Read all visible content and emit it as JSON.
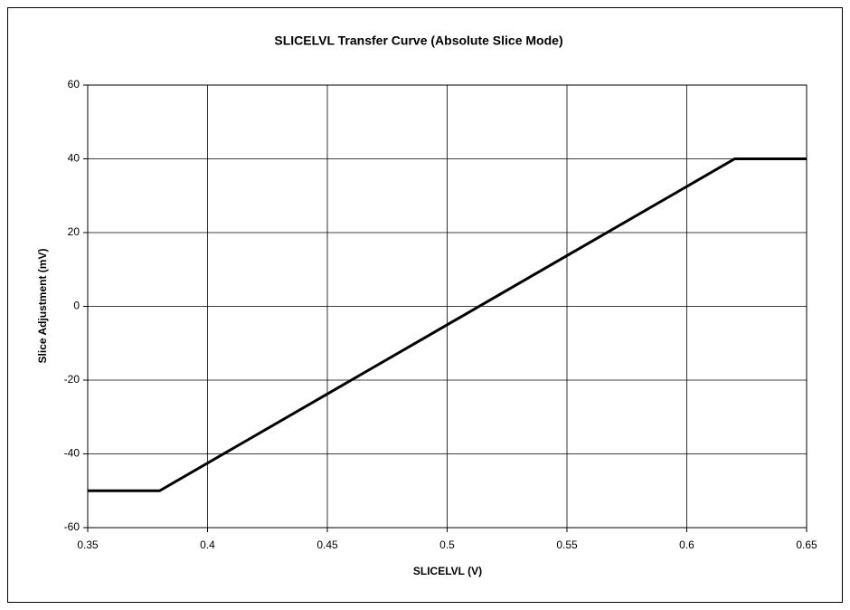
{
  "chart_data": {
    "type": "line",
    "title": "SLICELVL Transfer Curve (Absolute Slice Mode)",
    "xlabel": "SLICELVL (V)",
    "ylabel": "Slice Adjustment (mV)",
    "x": [
      0.35,
      0.38,
      0.62,
      0.65
    ],
    "values": [
      -50,
      -50,
      40,
      40
    ],
    "color": "#000000",
    "xlim": [
      0.35,
      0.65
    ],
    "xticks": [
      0.35,
      0.4,
      0.45,
      0.5,
      0.55,
      0.6,
      0.65
    ],
    "ylim": [
      -60,
      60
    ],
    "yticks": [
      -60,
      -40,
      -20,
      0,
      20,
      40,
      60
    ],
    "grid": true
  }
}
